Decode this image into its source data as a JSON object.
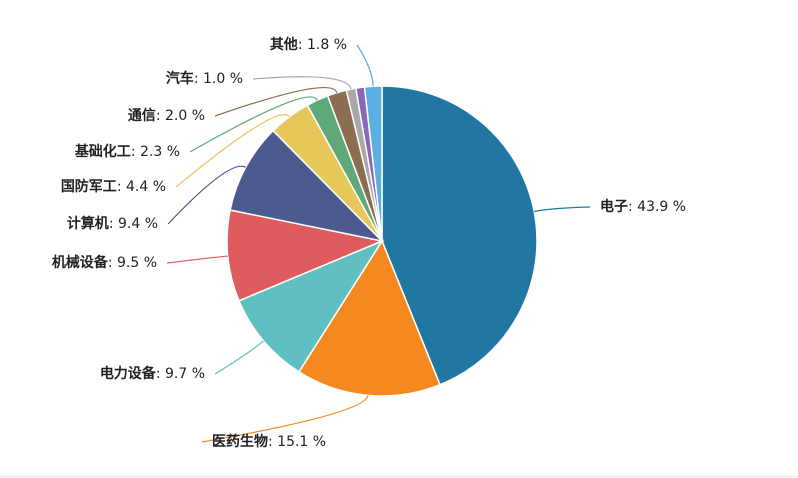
{
  "chart_data": {
    "type": "pie",
    "categories": [
      "电子",
      "医药生物",
      "电力设备",
      "机械设备",
      "计算机",
      "国防军工",
      "基础化工",
      "通信",
      "汽车",
      null,
      "其他"
    ],
    "values": [
      43.9,
      15.1,
      9.7,
      9.5,
      9.4,
      4.4,
      2.3,
      2.0,
      1.0,
      0.9,
      1.8
    ],
    "value_labels": [
      ": 43.9 %",
      ": 15.1 %",
      ": 9.7 %",
      ": 9.5 %",
      ": 9.4 %",
      ": 4.4 %",
      ": 2.3 %",
      ": 2.0 %",
      ": 1.0 %",
      null,
      ": 1.8 %"
    ],
    "colors": [
      "#2277a2",
      "#f5881e",
      "#60bfc0",
      "#e05b5d",
      "#4b5a8f",
      "#e5c75a",
      "#5fa878",
      "#8c6d52",
      "#a9a9a9",
      "#8866bb",
      "#5aaee0"
    ]
  }
}
